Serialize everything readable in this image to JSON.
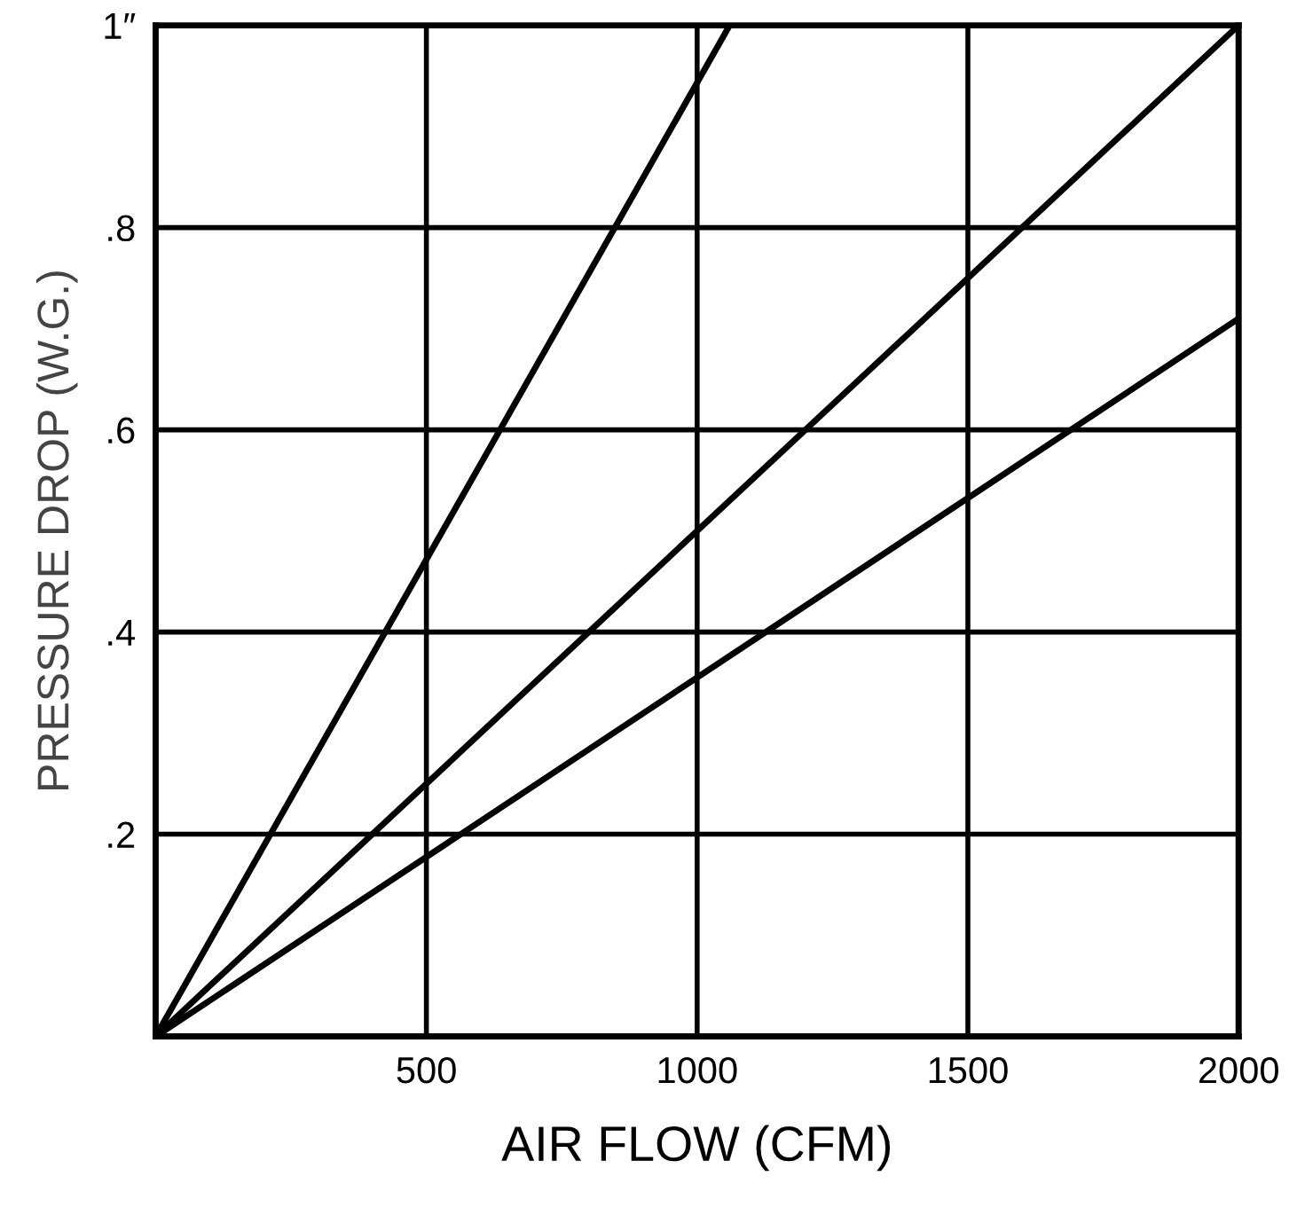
{
  "chart_data": {
    "type": "line",
    "xlabel": "AIR FLOW (CFM)",
    "ylabel": "PRESSURE DROP (W.G.)",
    "series": [
      {
        "color": "#000000",
        "x": [
          0,
          1060
        ],
        "values": [
          0,
          1
        ]
      },
      {
        "color": "#000000",
        "x": [
          0,
          2000
        ],
        "values": [
          0,
          1
        ]
      },
      {
        "color": "#000000",
        "x": [
          0,
          2000
        ],
        "values": [
          0,
          0.71
        ]
      }
    ],
    "xlim": [
      0,
      2000
    ],
    "ylim": [
      0,
      1
    ],
    "xticks": [
      500,
      1000,
      1500,
      2000
    ],
    "yticks": [
      {
        "value": 0.2,
        "label": ".2"
      },
      {
        "value": 0.4,
        "label": ".4"
      },
      {
        "value": 0.6,
        "label": ".6"
      },
      {
        "value": 0.8,
        "label": ".8"
      },
      {
        "value": 1,
        "label": "1″"
      }
    ],
    "grid": true,
    "line_style": "solid",
    "marker": "none"
  }
}
